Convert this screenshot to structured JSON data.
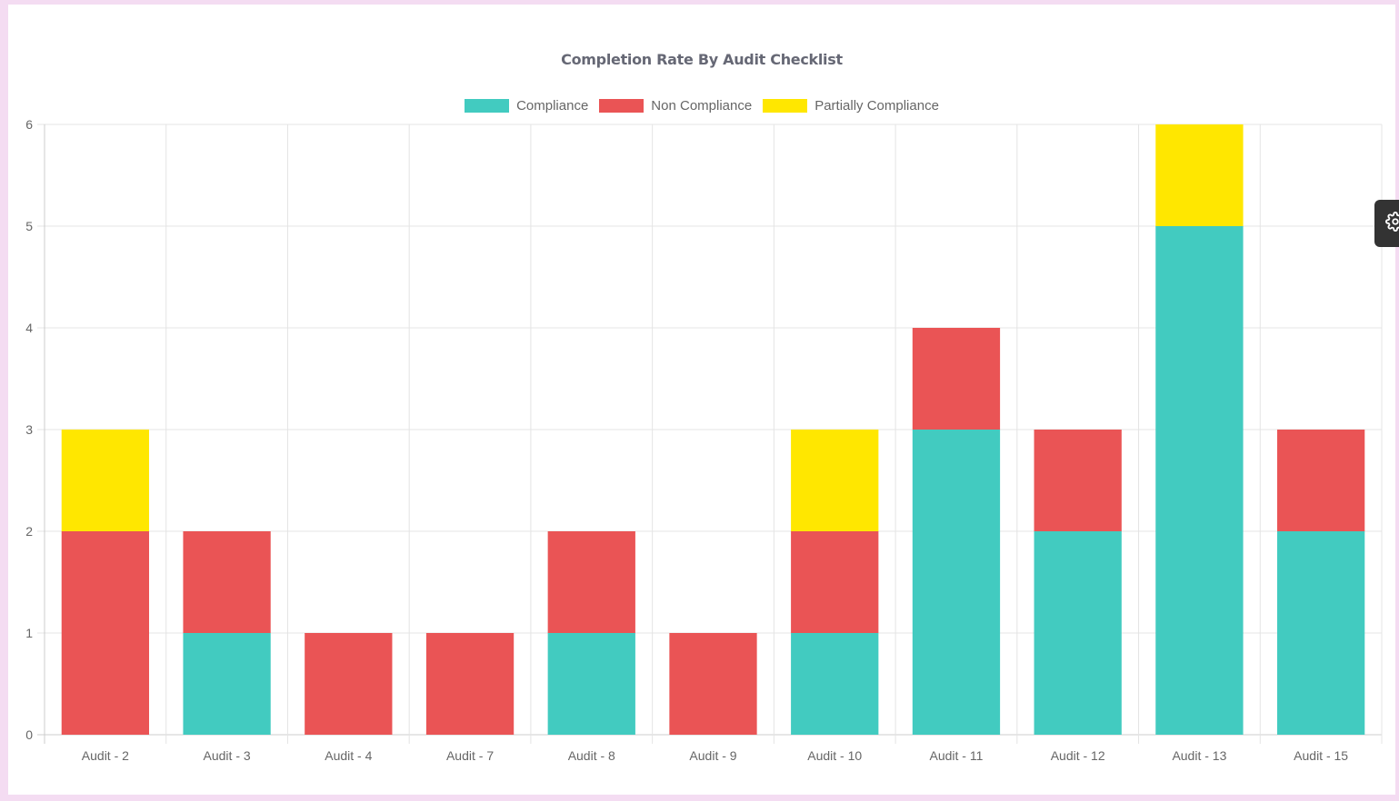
{
  "chart_data": {
    "type": "bar",
    "stacked": true,
    "title": "Completion Rate By Audit Checklist",
    "xlabel": "",
    "ylabel": "",
    "categories": [
      "Audit - 2",
      "Audit - 3",
      "Audit - 4",
      "Audit - 7",
      "Audit - 8",
      "Audit - 9",
      "Audit - 10",
      "Audit - 11",
      "Audit - 12",
      "Audit - 13",
      "Audit - 15"
    ],
    "series": [
      {
        "name": "Compliance",
        "color": "#42cbc0",
        "values": [
          0,
          1,
          0,
          0,
          1,
          0,
          1,
          3,
          2,
          5,
          2
        ]
      },
      {
        "name": "Non Compliance",
        "color": "#ea5455",
        "values": [
          2,
          1,
          1,
          1,
          1,
          1,
          1,
          1,
          1,
          0,
          1
        ]
      },
      {
        "name": "Partially Compliance",
        "color": "#ffe700",
        "values": [
          1,
          0,
          0,
          0,
          0,
          0,
          1,
          0,
          0,
          1,
          0
        ]
      }
    ],
    "ylim": [
      0,
      6
    ],
    "yticks": [
      "0",
      "1",
      "2",
      "3",
      "4",
      "5",
      "6"
    ],
    "grid": true,
    "legend_position": "top"
  },
  "settings_button": {
    "icon": "gear-icon"
  }
}
